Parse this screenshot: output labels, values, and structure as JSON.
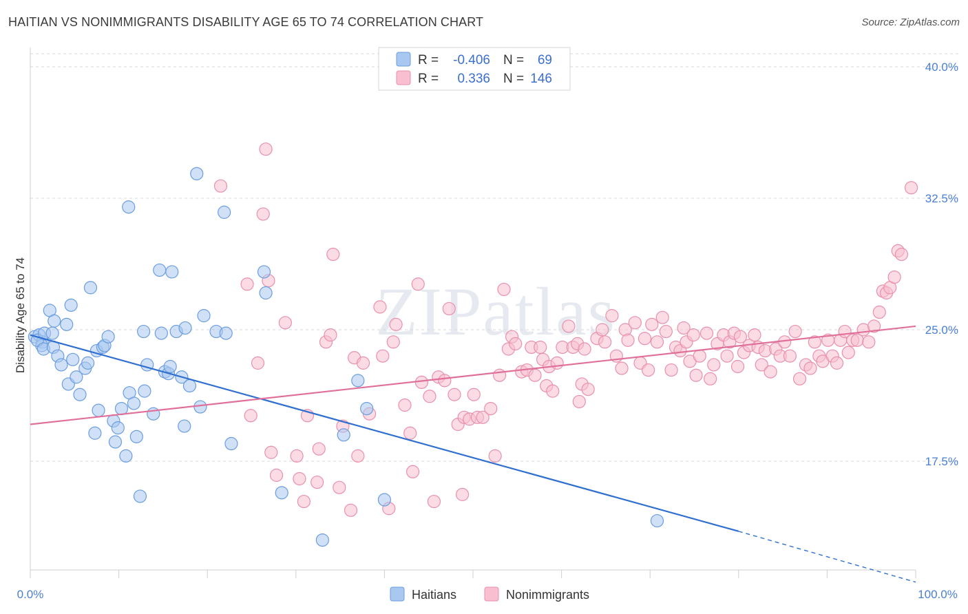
{
  "header": {
    "title": "HAITIAN VS NONIMMIGRANTS DISABILITY AGE 65 TO 74 CORRELATION CHART",
    "source": "Source: ZipAtlas.com"
  },
  "watermark": "ZIPatlas",
  "colors": {
    "haitians_fill": "#a9c8f0",
    "haitians_stroke": "#6a9de0",
    "haitians_line": "#2f6fcf",
    "nonimm_fill": "#f7bfd0",
    "nonimm_stroke": "#ea8fac",
    "nonimm_line": "#e0709a",
    "tick_label": "#4a7fd4",
    "grid": "#d8d8d8"
  },
  "legend": {
    "rows": [
      {
        "r_label": "R =",
        "r_value": "-0.406",
        "n_label": "N =",
        "n_value": "69"
      },
      {
        "r_label": "R =",
        "r_value": "0.336",
        "n_label": "N =",
        "n_value": "146"
      }
    ]
  },
  "chart_data": {
    "type": "scatter",
    "title": "HAITIAN VS NONIMMIGRANTS DISABILITY AGE 65 TO 74 CORRELATION CHART",
    "xlabel": "",
    "ylabel": "Disability Age 65 to 74",
    "xlim": [
      0,
      100
    ],
    "ylim": [
      10,
      41
    ],
    "x_tick_labels": [
      "0.0%",
      "100.0%"
    ],
    "y_ticks": [
      17.5,
      25.0,
      32.5,
      40.0
    ],
    "y_tick_labels": [
      "17.5%",
      "25.0%",
      "32.5%",
      "40.0%"
    ],
    "grid": true,
    "legend_position": "top-center",
    "series": [
      {
        "name": "Haitians",
        "r": -0.406,
        "n": 69,
        "trend": {
          "x0": 0,
          "y0": 24.7,
          "x1": 80,
          "y1": 13.5,
          "dash_to_x": 100,
          "dash_to_y": 10.6
        },
        "points": [
          [
            0.5,
            24.6
          ],
          [
            1.0,
            24.7
          ],
          [
            1.4,
            24.3
          ],
          [
            1.3,
            24.1
          ],
          [
            0.8,
            24.4
          ],
          [
            1.6,
            24.8
          ],
          [
            1.5,
            23.9
          ],
          [
            2.2,
            26.1
          ],
          [
            2.5,
            24.8
          ],
          [
            2.6,
            24.0
          ],
          [
            2.7,
            25.5
          ],
          [
            3.1,
            23.5
          ],
          [
            3.5,
            23.0
          ],
          [
            4.1,
            25.3
          ],
          [
            4.3,
            21.9
          ],
          [
            4.6,
            26.4
          ],
          [
            4.8,
            23.3
          ],
          [
            5.2,
            22.3
          ],
          [
            5.6,
            21.3
          ],
          [
            6.2,
            22.8
          ],
          [
            6.5,
            23.1
          ],
          [
            6.8,
            27.4
          ],
          [
            7.3,
            19.1
          ],
          [
            7.5,
            23.8
          ],
          [
            7.7,
            20.4
          ],
          [
            8.2,
            24.0
          ],
          [
            8.4,
            24.1
          ],
          [
            8.8,
            24.6
          ],
          [
            9.4,
            19.8
          ],
          [
            9.6,
            18.6
          ],
          [
            9.9,
            19.4
          ],
          [
            10.3,
            20.5
          ],
          [
            10.8,
            17.8
          ],
          [
            11.1,
            32.0
          ],
          [
            11.2,
            21.4
          ],
          [
            11.7,
            20.8
          ],
          [
            12.0,
            18.9
          ],
          [
            12.4,
            15.5
          ],
          [
            12.8,
            24.9
          ],
          [
            12.9,
            21.5
          ],
          [
            13.2,
            23.0
          ],
          [
            13.9,
            20.2
          ],
          [
            14.8,
            24.8
          ],
          [
            14.6,
            28.4
          ],
          [
            15.2,
            22.6
          ],
          [
            15.6,
            22.5
          ],
          [
            15.8,
            22.9
          ],
          [
            16.0,
            28.3
          ],
          [
            16.5,
            24.9
          ],
          [
            17.1,
            22.3
          ],
          [
            17.4,
            19.5
          ],
          [
            17.5,
            25.1
          ],
          [
            18.0,
            21.8
          ],
          [
            18.8,
            33.9
          ],
          [
            19.2,
            20.6
          ],
          [
            19.6,
            25.8
          ],
          [
            21.0,
            24.9
          ],
          [
            21.9,
            31.7
          ],
          [
            22.1,
            24.8
          ],
          [
            22.7,
            18.5
          ],
          [
            26.4,
            28.3
          ],
          [
            26.6,
            27.1
          ],
          [
            28.4,
            15.7
          ],
          [
            33.0,
            13.0
          ],
          [
            35.4,
            19.0
          ],
          [
            37.0,
            22.1
          ],
          [
            38.0,
            20.5
          ],
          [
            40.0,
            15.3
          ],
          [
            70.8,
            14.1
          ]
        ]
      },
      {
        "name": "Nonimmigrants",
        "r": 0.336,
        "n": 146,
        "trend": {
          "x0": 0,
          "y0": 19.6,
          "x1": 100,
          "y1": 25.2
        },
        "points": [
          [
            21.5,
            33.2
          ],
          [
            24.5,
            27.6
          ],
          [
            24.9,
            20.1
          ],
          [
            25.7,
            23.1
          ],
          [
            26.3,
            31.6
          ],
          [
            26.6,
            35.3
          ],
          [
            26.9,
            27.8
          ],
          [
            27.2,
            18.0
          ],
          [
            27.8,
            16.7
          ],
          [
            28.8,
            25.4
          ],
          [
            30.1,
            17.8
          ],
          [
            30.4,
            16.5
          ],
          [
            30.9,
            15.2
          ],
          [
            31.3,
            20.1
          ],
          [
            32.4,
            16.3
          ],
          [
            32.6,
            18.2
          ],
          [
            33.4,
            24.3
          ],
          [
            33.9,
            24.7
          ],
          [
            34.2,
            29.3
          ],
          [
            34.9,
            16.0
          ],
          [
            35.3,
            19.5
          ],
          [
            36.2,
            14.7
          ],
          [
            36.6,
            23.4
          ],
          [
            37.0,
            17.8
          ],
          [
            37.6,
            23.1
          ],
          [
            38.3,
            20.2
          ],
          [
            39.5,
            26.3
          ],
          [
            39.8,
            23.5
          ],
          [
            40.5,
            14.8
          ],
          [
            41.0,
            24.3
          ],
          [
            41.3,
            25.3
          ],
          [
            42.3,
            20.7
          ],
          [
            42.9,
            19.1
          ],
          [
            43.2,
            16.9
          ],
          [
            43.8,
            27.6
          ],
          [
            44.2,
            22.0
          ],
          [
            45.1,
            21.2
          ],
          [
            45.6,
            15.2
          ],
          [
            46.1,
            22.3
          ],
          [
            46.8,
            22.1
          ],
          [
            47.3,
            26.2
          ],
          [
            47.9,
            21.3
          ],
          [
            48.3,
            19.6
          ],
          [
            48.8,
            15.6
          ],
          [
            49.0,
            20.0
          ],
          [
            49.6,
            19.9
          ],
          [
            50.1,
            21.3
          ],
          [
            50.5,
            20.0
          ],
          [
            51.1,
            20.0
          ],
          [
            52.0,
            20.5
          ],
          [
            52.5,
            17.8
          ],
          [
            53.0,
            22.4
          ],
          [
            53.5,
            27.3
          ],
          [
            54.0,
            23.9
          ],
          [
            54.4,
            24.6
          ],
          [
            54.8,
            24.2
          ],
          [
            55.5,
            22.6
          ],
          [
            56.1,
            22.7
          ],
          [
            56.6,
            24.0
          ],
          [
            57.0,
            22.4
          ],
          [
            57.6,
            24.0
          ],
          [
            57.9,
            23.3
          ],
          [
            58.3,
            21.8
          ],
          [
            58.6,
            22.9
          ],
          [
            59.0,
            21.5
          ],
          [
            59.5,
            23.1
          ],
          [
            60.1,
            24.0
          ],
          [
            60.8,
            25.2
          ],
          [
            61.3,
            24.0
          ],
          [
            61.8,
            24.2
          ],
          [
            62.3,
            21.9
          ],
          [
            62.6,
            23.9
          ],
          [
            63.0,
            21.6
          ],
          [
            64.0,
            24.5
          ],
          [
            64.6,
            25.0
          ],
          [
            64.9,
            24.3
          ],
          [
            65.7,
            25.8
          ],
          [
            66.2,
            23.5
          ],
          [
            66.8,
            22.8
          ],
          [
            67.2,
            25.0
          ],
          [
            67.5,
            24.4
          ],
          [
            68.3,
            25.4
          ],
          [
            68.9,
            23.1
          ],
          [
            69.4,
            24.5
          ],
          [
            69.8,
            22.7
          ],
          [
            70.2,
            25.3
          ],
          [
            70.8,
            24.3
          ],
          [
            71.4,
            25.7
          ],
          [
            71.8,
            24.9
          ],
          [
            72.4,
            22.7
          ],
          [
            72.9,
            24.0
          ],
          [
            73.4,
            23.8
          ],
          [
            73.8,
            25.1
          ],
          [
            74.1,
            24.3
          ],
          [
            74.5,
            23.2
          ],
          [
            74.9,
            24.7
          ],
          [
            75.2,
            22.4
          ],
          [
            75.6,
            23.5
          ],
          [
            76.4,
            24.8
          ],
          [
            76.8,
            22.2
          ],
          [
            77.2,
            23.0
          ],
          [
            77.6,
            24.2
          ],
          [
            78.3,
            24.7
          ],
          [
            78.7,
            23.5
          ],
          [
            79.0,
            24.3
          ],
          [
            79.5,
            24.8
          ],
          [
            79.9,
            22.9
          ],
          [
            80.2,
            24.6
          ],
          [
            80.6,
            23.7
          ],
          [
            81.2,
            24.1
          ],
          [
            81.8,
            24.7
          ],
          [
            82.2,
            24.0
          ],
          [
            82.6,
            23.0
          ],
          [
            83.0,
            23.8
          ],
          [
            83.6,
            22.6
          ],
          [
            84.2,
            23.9
          ],
          [
            84.7,
            23.5
          ],
          [
            85.2,
            24.3
          ],
          [
            85.8,
            23.5
          ],
          [
            86.4,
            24.9
          ],
          [
            86.9,
            22.2
          ],
          [
            87.6,
            23.0
          ],
          [
            88.1,
            22.8
          ],
          [
            88.6,
            24.3
          ],
          [
            89.1,
            23.5
          ],
          [
            89.5,
            23.2
          ],
          [
            90.1,
            24.4
          ],
          [
            90.6,
            23.5
          ],
          [
            91.1,
            23.1
          ],
          [
            91.5,
            24.4
          ],
          [
            92.0,
            24.9
          ],
          [
            92.4,
            23.7
          ],
          [
            92.9,
            24.4
          ],
          [
            93.4,
            24.4
          ],
          [
            94.1,
            25.0
          ],
          [
            94.7,
            24.3
          ],
          [
            95.3,
            25.2
          ],
          [
            95.9,
            26.0
          ],
          [
            96.3,
            27.2
          ],
          [
            96.7,
            27.1
          ],
          [
            97.1,
            27.4
          ],
          [
            97.6,
            28.0
          ],
          [
            98.0,
            29.5
          ],
          [
            98.4,
            29.3
          ],
          [
            99.5,
            33.1
          ],
          [
            62.0,
            20.9
          ]
        ]
      }
    ]
  }
}
